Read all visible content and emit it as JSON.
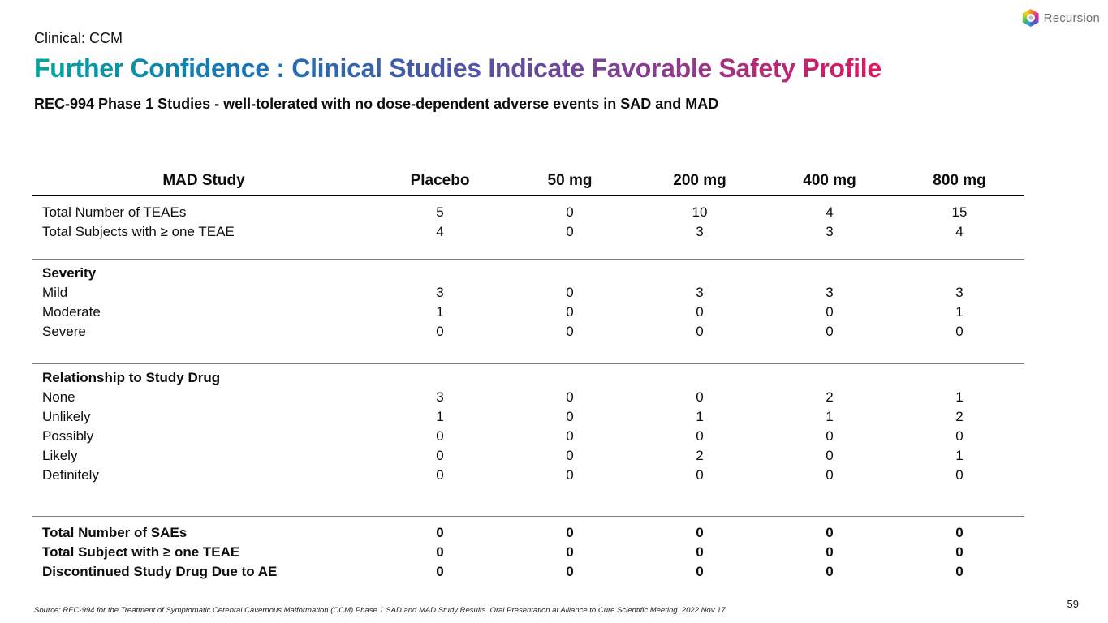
{
  "slide": {
    "kicker": "Clinical: CCM",
    "title": "Further Confidence : Clinical Studies Indicate Favorable Safety Profile",
    "subtitle": "REC-994 Phase 1 Studies - well-tolerated with no dose-dependent adverse events in SAD and MAD",
    "source": "Source: REC-994 for the Treatment of Symptomatic Cerebral Cavernous Malformation (CCM) Phase 1 SAD and MAD Study Results. Oral Presentation at Alliance to Cure Scientific Meeting. 2022 Nov 17",
    "page_number": "59",
    "title_gradient": [
      "#00a79d",
      "#1874b8",
      "#4e55a5",
      "#8f3a8e",
      "#e0175f"
    ],
    "logo": {
      "text": "Recursion",
      "icon": "hexagon-rainbow-logo-icon",
      "text_color": "#6d6e71"
    }
  },
  "chart_data": {
    "type": "table",
    "title": "MAD Study safety table",
    "columns": [
      "MAD Study",
      "Placebo",
      "50 mg",
      "200 mg",
      "400 mg",
      "800 mg"
    ],
    "sections": [
      {
        "header": null,
        "bold_rows": false,
        "rows": [
          {
            "label": "Total Number of TEAEs",
            "values": [
              "5",
              "0",
              "10",
              "4",
              "15"
            ]
          },
          {
            "label": "Total Subjects with ≥ one TEAE",
            "values": [
              "4",
              "0",
              "3",
              "3",
              "4"
            ]
          }
        ]
      },
      {
        "header": "Severity",
        "bold_rows": false,
        "rows": [
          {
            "label": "Mild",
            "values": [
              "3",
              "0",
              "3",
              "3",
              "3"
            ]
          },
          {
            "label": "Moderate",
            "values": [
              "1",
              "0",
              "0",
              "0",
              "1"
            ]
          },
          {
            "label": "Severe",
            "values": [
              "0",
              "0",
              "0",
              "0",
              "0"
            ]
          }
        ]
      },
      {
        "header": "Relationship to Study Drug",
        "bold_rows": false,
        "rows": [
          {
            "label": "None",
            "values": [
              "3",
              "0",
              "0",
              "2",
              "1"
            ]
          },
          {
            "label": "Unlikely",
            "values": [
              "1",
              "0",
              "1",
              "1",
              "2"
            ]
          },
          {
            "label": "Possibly",
            "values": [
              "0",
              "0",
              "0",
              "0",
              "0"
            ]
          },
          {
            "label": "Likely",
            "values": [
              "0",
              "0",
              "2",
              "0",
              "1"
            ]
          },
          {
            "label": "Definitely",
            "values": [
              "0",
              "0",
              "0",
              "0",
              "0"
            ]
          }
        ]
      },
      {
        "header": null,
        "bold_rows": true,
        "rows": [
          {
            "label": "Total Number of SAEs",
            "values": [
              "0",
              "0",
              "0",
              "0",
              "0"
            ]
          },
          {
            "label": "Total Subject with ≥ one TEAE",
            "values": [
              "0",
              "0",
              "0",
              "0",
              "0"
            ]
          },
          {
            "label": "Discontinued Study Drug Due to AE",
            "values": [
              "0",
              "0",
              "0",
              "0",
              "0"
            ]
          }
        ]
      }
    ]
  }
}
